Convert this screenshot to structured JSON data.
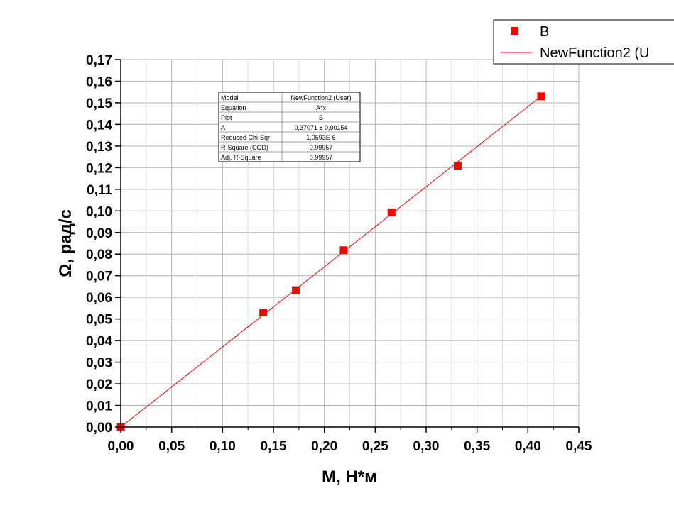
{
  "chart_data": {
    "type": "scatter",
    "xlabel": "M, Н*м",
    "ylabel": "Ω, рад/с",
    "xlim": [
      0,
      0.45
    ],
    "ylim": [
      0,
      0.17
    ],
    "x_ticks": [
      "0,00",
      "0,05",
      "0,10",
      "0,15",
      "0,20",
      "0,25",
      "0,30",
      "0,35",
      "0,40",
      "0,45"
    ],
    "y_ticks": [
      "0,00",
      "0,01",
      "0,02",
      "0,03",
      "0,04",
      "0,05",
      "0,06",
      "0,07",
      "0,08",
      "0,09",
      "0,10",
      "0,11",
      "0,12",
      "0,13",
      "0,14",
      "0,15",
      "0,16",
      "0,17"
    ],
    "grid": true,
    "legend_position": "top-right",
    "series": [
      {
        "name": "B",
        "type": "scatter",
        "marker": "square",
        "color": "#ff0000",
        "x": [
          0.0,
          0.14,
          0.172,
          0.219,
          0.266,
          0.331,
          0.413
        ],
        "y": [
          0.0,
          0.053,
          0.0633,
          0.0818,
          0.0993,
          0.1208,
          0.153
        ]
      },
      {
        "name": "NewFunction2 (U",
        "type": "line",
        "color": "#ff0000",
        "x": [
          0.0,
          0.413
        ],
        "y": [
          0.0,
          0.1531
        ]
      }
    ],
    "fit_table": [
      [
        "Model",
        "NewFunction2 (User)"
      ],
      [
        "Equation",
        "A*x"
      ],
      [
        "Plot",
        "B"
      ],
      [
        "A",
        "0,37071 ± 0,00154"
      ],
      [
        "Reduced Chi-Sqr",
        "1,0593E-6"
      ],
      [
        "R-Square (COD)",
        "0,99957"
      ],
      [
        "Adj. R-Square",
        "0,99957"
      ]
    ]
  }
}
